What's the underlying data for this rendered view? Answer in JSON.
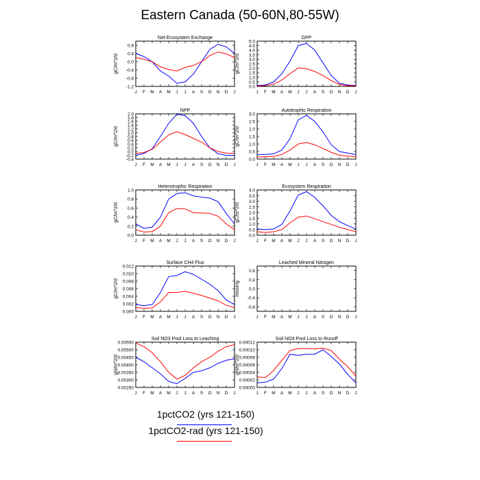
{
  "page": {
    "title": "Eastern Canada (50-60N,80-55W)"
  },
  "legend": [
    {
      "label": "1pctCO2 (yrs 121-150)",
      "color": "#0000ff"
    },
    {
      "label": "1pctCO2-rad (yrs 121-150)",
      "color": "#ff0000"
    }
  ],
  "colors": {
    "series1": "#0000ff",
    "series2": "#ff0000"
  },
  "chart_data": [
    {
      "type": "line",
      "title": "Net Ecosystem Exchange",
      "ylabel": "gC/m^2/d",
      "categories": [
        "J",
        "F",
        "M",
        "A",
        "M",
        "J",
        "J",
        "A",
        "S",
        "O",
        "N",
        "D",
        "J"
      ],
      "ylim": [
        -1.2,
        1.0
      ],
      "yticks": [
        -1.2,
        -0.8,
        -0.4,
        0.0,
        0.4,
        0.8
      ],
      "yticklabels": [
        "-1.2",
        "-0.8",
        "-0.4",
        "0.0",
        "0.4",
        "0.8"
      ],
      "series": [
        {
          "values": [
            0.4,
            0.25,
            0.0,
            -0.45,
            -0.7,
            -1.05,
            -0.98,
            -0.6,
            0.0,
            0.6,
            0.85,
            0.72,
            0.4
          ]
        },
        {
          "values": [
            0.2,
            0.12,
            0.0,
            -0.25,
            -0.38,
            -0.45,
            -0.28,
            -0.18,
            0.0,
            0.3,
            0.48,
            0.38,
            0.2
          ]
        }
      ]
    },
    {
      "type": "line",
      "title": "GPP",
      "ylabel": "gC/m^2/d",
      "categories": [
        "J",
        "F",
        "M",
        "A",
        "M",
        "J",
        "J",
        "A",
        "S",
        "O",
        "N",
        "D",
        "J"
      ],
      "ylim": [
        0.0,
        5.0
      ],
      "yticks": [
        0,
        0.5,
        1,
        1.5,
        2,
        2.5,
        3,
        3.5,
        4,
        4.5,
        5
      ],
      "yticklabels": [
        "0.0",
        "0.5",
        "1.0",
        "1.5",
        "2.0",
        "2.5",
        "3.0",
        "3.5",
        "4.0",
        "4.5",
        "5.0"
      ],
      "series": [
        {
          "values": [
            0.1,
            0.15,
            0.5,
            1.4,
            2.8,
            4.5,
            4.75,
            4.0,
            2.6,
            1.2,
            0.35,
            0.15,
            0.1
          ]
        },
        {
          "values": [
            0.05,
            0.08,
            0.25,
            0.7,
            1.4,
            2.05,
            1.95,
            1.65,
            1.2,
            0.65,
            0.22,
            0.08,
            0.05
          ]
        }
      ]
    },
    {
      "type": "line",
      "title": "NPP",
      "ylabel": "gC/m^2/d",
      "categories": [
        "J",
        "F",
        "M",
        "A",
        "M",
        "J",
        "J",
        "A",
        "S",
        "O",
        "N",
        "D",
        "J"
      ],
      "ylim": [
        -0.4,
        2.0
      ],
      "yticks": [
        -0.4,
        -0.2,
        0,
        0.2,
        0.4,
        0.6,
        0.8,
        1,
        1.2,
        1.4,
        1.6,
        1.8,
        2
      ],
      "yticklabels": [
        "-0.4",
        "-0.2",
        "0.0",
        "0.2",
        "0.4",
        "0.6",
        "0.8",
        "1.0",
        "1.2",
        "1.4",
        "1.6",
        "1.8",
        "2.0"
      ],
      "series": [
        {
          "values": [
            -0.2,
            -0.1,
            0.15,
            0.8,
            1.5,
            1.98,
            1.9,
            1.5,
            0.8,
            0.2,
            -0.12,
            -0.2,
            -0.2
          ]
        },
        {
          "values": [
            -0.1,
            -0.05,
            0.12,
            0.5,
            0.88,
            1.05,
            0.9,
            0.7,
            0.5,
            0.2,
            0.0,
            -0.08,
            -0.1
          ]
        }
      ]
    },
    {
      "type": "line",
      "title": "Autotrophic Respiration",
      "ylabel": "gC/m^2/d",
      "categories": [
        "J",
        "F",
        "M",
        "A",
        "M",
        "J",
        "J",
        "A",
        "S",
        "O",
        "N",
        "D",
        "J"
      ],
      "ylim": [
        0.0,
        3.0
      ],
      "yticks": [
        0,
        0.5,
        1,
        1.5,
        2,
        2.5,
        3
      ],
      "yticklabels": [
        "0.0",
        "0.5",
        "1.0",
        "1.5",
        "2.0",
        "2.5",
        "3.0"
      ],
      "series": [
        {
          "values": [
            0.3,
            0.3,
            0.35,
            0.6,
            1.35,
            2.6,
            2.9,
            2.5,
            1.8,
            0.95,
            0.5,
            0.4,
            0.3
          ]
        },
        {
          "values": [
            0.15,
            0.15,
            0.18,
            0.3,
            0.6,
            1.0,
            1.1,
            0.95,
            0.7,
            0.45,
            0.25,
            0.2,
            0.15
          ]
        }
      ]
    },
    {
      "type": "line",
      "title": "Heterotrophic Respiration",
      "ylabel": "gC/m^2/d",
      "categories": [
        "J",
        "F",
        "M",
        "A",
        "M",
        "J",
        "J",
        "A",
        "S",
        "O",
        "N",
        "D",
        "J"
      ],
      "ylim": [
        0.0,
        1.0
      ],
      "yticks": [
        0,
        0.2,
        0.4,
        0.6,
        0.8,
        1
      ],
      "yticklabels": [
        "0.0",
        "0.2",
        "0.4",
        "0.6",
        "0.8",
        "1.0"
      ],
      "series": [
        {
          "values": [
            0.25,
            0.15,
            0.18,
            0.4,
            0.8,
            0.92,
            0.94,
            0.87,
            0.84,
            0.82,
            0.74,
            0.48,
            0.25
          ]
        },
        {
          "values": [
            0.12,
            0.07,
            0.08,
            0.2,
            0.5,
            0.59,
            0.58,
            0.5,
            0.49,
            0.48,
            0.42,
            0.25,
            0.12
          ]
        }
      ]
    },
    {
      "type": "line",
      "title": "Ecosystem Respiration",
      "ylabel": "gC/m^2/d",
      "categories": [
        "J",
        "F",
        "M",
        "A",
        "M",
        "J",
        "J",
        "A",
        "S",
        "O",
        "N",
        "D",
        "J"
      ],
      "ylim": [
        0.0,
        4.0
      ],
      "yticks": [
        0,
        0.5,
        1,
        1.5,
        2,
        2.5,
        3,
        3.5,
        4
      ],
      "yticklabels": [
        "0.0",
        "0.5",
        "1.0",
        "1.5",
        "2.0",
        "2.5",
        "3.0",
        "3.5",
        "4.0"
      ],
      "series": [
        {
          "values": [
            0.55,
            0.5,
            0.55,
            0.95,
            2.15,
            3.55,
            3.85,
            3.35,
            2.6,
            1.75,
            1.2,
            0.85,
            0.55
          ]
        },
        {
          "values": [
            0.3,
            0.25,
            0.3,
            0.5,
            1.1,
            1.6,
            1.7,
            1.45,
            1.2,
            0.95,
            0.7,
            0.5,
            0.3
          ]
        }
      ]
    },
    {
      "type": "line",
      "title": "Surface CH4 Flux",
      "ylabel": "gC/m^2/d",
      "categories": [
        "J",
        "F",
        "M",
        "A",
        "M",
        "J",
        "J",
        "A",
        "S",
        "O",
        "N",
        "D",
        "J"
      ],
      "ylim": [
        0.0,
        0.012
      ],
      "yticks": [
        0,
        0.002,
        0.004,
        0.006,
        0.008,
        0.01,
        0.012
      ],
      "yticklabels": [
        "0.000",
        "0.002",
        "0.004",
        "0.006",
        "0.008",
        "0.010",
        "0.012"
      ],
      "series": [
        {
          "values": [
            0.0018,
            0.0015,
            0.0018,
            0.005,
            0.0092,
            0.0095,
            0.0105,
            0.0098,
            0.0085,
            0.0072,
            0.0055,
            0.003,
            0.0018
          ]
        },
        {
          "values": [
            0.001,
            0.0008,
            0.0009,
            0.0025,
            0.005,
            0.005,
            0.0053,
            0.0048,
            0.0042,
            0.0035,
            0.0028,
            0.0016,
            0.001
          ]
        }
      ]
    },
    {
      "type": "line",
      "title": "Leached Mineral Nitrogen",
      "ylabel": "missing",
      "categories": [
        "J",
        "F",
        "M",
        "A",
        "M",
        "J",
        "J",
        "A",
        "S",
        "O",
        "N",
        "D",
        "J"
      ],
      "ylim": [
        -1.0,
        1.0
      ],
      "yticks": [
        -0.8,
        -0.4,
        0,
        0.4,
        0.8
      ],
      "yticklabels": [
        "-0.8",
        "-0.4",
        "0.0",
        "0.4",
        "0.8"
      ],
      "series": []
    },
    {
      "type": "line",
      "title": "Soil NO3 Pool Loss to Leaching",
      "ylabel": "gN/m^2/d",
      "categories": [
        "J",
        "F",
        "M",
        "A",
        "M",
        "J",
        "J",
        "A",
        "S",
        "O",
        "N",
        "D",
        "J"
      ],
      "ylim": [
        0.0025,
        0.0055
      ],
      "yticks": [
        0.0025,
        0.003,
        0.0035,
        0.004,
        0.0045,
        0.005,
        0.0055
      ],
      "yticklabels": [
        "0.00250",
        "0.00300",
        "0.00350",
        "0.00400",
        "0.00450",
        "0.00500",
        "0.00550"
      ],
      "series": [
        {
          "values": [
            0.0045,
            0.0042,
            0.0038,
            0.0034,
            0.0029,
            0.00275,
            0.0031,
            0.0035,
            0.0036,
            0.0038,
            0.0041,
            0.0043,
            0.0044
          ]
        },
        {
          "values": [
            0.00545,
            0.0052,
            0.0048,
            0.0042,
            0.0035,
            0.00305,
            0.0033,
            0.0038,
            0.0042,
            0.0045,
            0.0049,
            0.0052,
            0.00535
          ]
        }
      ]
    },
    {
      "type": "line",
      "title": "Soil NO3 Pool Loss to Runoff",
      "ylabel": "gN/m^2/d",
      "categories": [
        "J",
        "F",
        "M",
        "A",
        "M",
        "J",
        "J",
        "A",
        "S",
        "O",
        "N",
        "D",
        "J"
      ],
      "ylim": [
        0.0,
        0.00012
      ],
      "yticks": [
        0,
        2e-05,
        4e-05,
        6e-05,
        8e-05,
        0.0001,
        0.00012
      ],
      "yticklabels": [
        "0.00000",
        "0.00002",
        "0.00004",
        "0.00006",
        "0.00008",
        "0.00010",
        "0.00012"
      ],
      "series": [
        {
          "values": [
            1.2e-05,
            1.4e-05,
            2.2e-05,
            5e-05,
            8.8e-05,
            8.5e-05,
            8.8e-05,
            8.8e-05,
            0.0001,
            8.2e-05,
            6.2e-05,
            3.5e-05,
            1.2e-05
          ]
        },
        {
          "values": [
            2.8e-05,
            2.6e-05,
            4.5e-05,
            7.2e-05,
            9.8e-05,
            0.000103,
            0.000103,
            0.000102,
            0.000104,
            9.8e-05,
            7.5e-05,
            5.5e-05,
            3e-05
          ]
        }
      ]
    }
  ]
}
